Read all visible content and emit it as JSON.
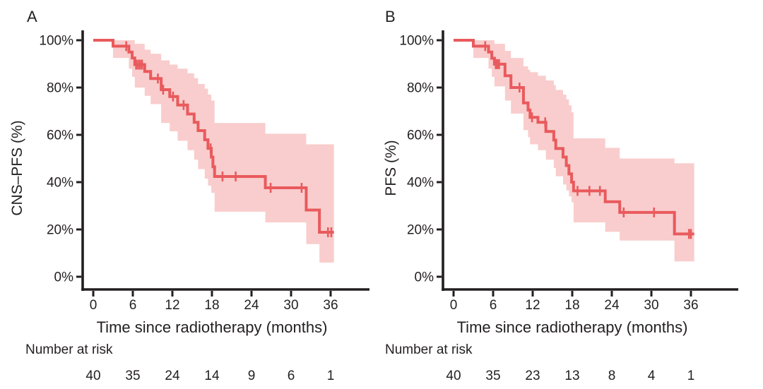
{
  "colors": {
    "curve": "#e95a5d",
    "ci_band": "#f9cdcd",
    "axis": "#231f20",
    "text": "#231f20",
    "background": "#ffffff"
  },
  "chart_data": [
    {
      "type": "line",
      "subtype": "kaplan_meier_step",
      "panel": "A",
      "title": "",
      "xlabel": "Time since radiotherapy (months)",
      "ylabel": "CNS–PFS (%)",
      "xlim": [
        0,
        36
      ],
      "ylim": [
        0,
        100
      ],
      "grid": false,
      "legend": "none",
      "x_ticks": [
        0,
        6,
        12,
        18,
        24,
        30,
        36
      ],
      "y_ticks": [
        100,
        80,
        60,
        40,
        20,
        0
      ],
      "y_tick_labels": [
        "100%",
        "80%",
        "60%",
        "40%",
        "20%",
        "0%"
      ],
      "series": [
        {
          "name": "CNS-PFS",
          "color": "#e95a5d",
          "ci_color": "#f9cdcd",
          "end_time": 36.5,
          "steps": [
            [
              0,
              100
            ],
            [
              3.0,
              97.5
            ],
            [
              5.4,
              95.0
            ],
            [
              5.9,
              92.5
            ],
            [
              6.3,
              89.7
            ],
            [
              7.8,
              86.8
            ],
            [
              8.7,
              83.8
            ],
            [
              10.3,
              79.1
            ],
            [
              11.6,
              76.2
            ],
            [
              12.8,
              72.6
            ],
            [
              14.3,
              68.8
            ],
            [
              15.3,
              65.3
            ],
            [
              15.9,
              61.8
            ],
            [
              16.9,
              57.9
            ],
            [
              17.4,
              54.3
            ],
            [
              17.9,
              50.6
            ],
            [
              18.15,
              46.5
            ],
            [
              18.4,
              42.4
            ],
            [
              26.1,
              37.6
            ],
            [
              32.3,
              28.2
            ],
            [
              34.3,
              18.8
            ]
          ],
          "censor_marks": [
            [
              5.0,
              97.5
            ],
            [
              6.5,
              89.7
            ],
            [
              6.8,
              89.7
            ],
            [
              7.1,
              89.7
            ],
            [
              7.4,
              89.7
            ],
            [
              9.8,
              83.8
            ],
            [
              10.6,
              79.1
            ],
            [
              12.1,
              76.2
            ],
            [
              13.7,
              72.6
            ],
            [
              17.8,
              54.3
            ],
            [
              19.6,
              42.4
            ],
            [
              21.6,
              42.4
            ],
            [
              26.9,
              37.6
            ],
            [
              31.6,
              37.6
            ],
            [
              35.6,
              18.8
            ],
            [
              36.1,
              18.8
            ]
          ],
          "ci_band": [
            [
              0,
              100,
              100
            ],
            [
              3.0,
              92.5,
              100
            ],
            [
              5.4,
              88,
              100
            ],
            [
              5.9,
              84.5,
              100
            ],
            [
              6.3,
              80,
              98.5
            ],
            [
              7.8,
              76.5,
              96
            ],
            [
              8.7,
              73,
              94.3
            ],
            [
              10.3,
              65,
              91.5
            ],
            [
              11.6,
              61.5,
              89.7
            ],
            [
              12.8,
              57.5,
              88
            ],
            [
              14.3,
              53.5,
              86
            ],
            [
              15.3,
              49.5,
              84
            ],
            [
              15.9,
              45.5,
              81.5
            ],
            [
              16.9,
              41.5,
              79.5
            ],
            [
              17.4,
              38.5,
              77
            ],
            [
              17.9,
              35.5,
              74.5
            ],
            [
              18.4,
              27.5,
              65
            ],
            [
              26.1,
              23,
              60.5
            ],
            [
              32.3,
              13.8,
              56
            ],
            [
              34.3,
              6,
              56
            ]
          ]
        }
      ],
      "number_at_risk": {
        "label": "Number at risk",
        "times": [
          0,
          6,
          12,
          18,
          24,
          30,
          36
        ],
        "counts": [
          40,
          35,
          24,
          14,
          9,
          6,
          1
        ]
      }
    },
    {
      "type": "line",
      "subtype": "kaplan_meier_step",
      "panel": "B",
      "title": "",
      "xlabel": "Time since radiotherapy (months)",
      "ylabel": "PFS (%)",
      "xlim": [
        0,
        36
      ],
      "ylim": [
        0,
        100
      ],
      "grid": false,
      "legend": "none",
      "x_ticks": [
        0,
        6,
        12,
        18,
        24,
        30,
        36
      ],
      "y_ticks": [
        100,
        80,
        60,
        40,
        20,
        0
      ],
      "y_tick_labels": [
        "100%",
        "80%",
        "60%",
        "40%",
        "20%",
        "0%"
      ],
      "series": [
        {
          "name": "PFS",
          "color": "#e95a5d",
          "ci_color": "#f9cdcd",
          "end_time": 36.5,
          "steps": [
            [
              0,
              100
            ],
            [
              3.0,
              97.5
            ],
            [
              5.3,
              95.0
            ],
            [
              5.8,
              92.4
            ],
            [
              6.2,
              89.9
            ],
            [
              7.8,
              85.0
            ],
            [
              8.7,
              80.0
            ],
            [
              10.6,
              73.5
            ],
            [
              11.3,
              70.5
            ],
            [
              11.6,
              67.4
            ],
            [
              12.8,
              65.3
            ],
            [
              14.0,
              61.4
            ],
            [
              15.2,
              57.8
            ],
            [
              15.5,
              54.2
            ],
            [
              16.6,
              50.6
            ],
            [
              17.1,
              47.0
            ],
            [
              17.5,
              43.5
            ],
            [
              17.9,
              40.0
            ],
            [
              18.2,
              36.3
            ],
            [
              23.0,
              31.7
            ],
            [
              25.2,
              27.2
            ],
            [
              33.5,
              18.1
            ]
          ],
          "censor_marks": [
            [
              4.8,
              97.5
            ],
            [
              6.4,
              89.9
            ],
            [
              6.65,
              89.9
            ],
            [
              6.9,
              89.9
            ],
            [
              10.0,
              80.0
            ],
            [
              11.9,
              67.4
            ],
            [
              13.9,
              65.3
            ],
            [
              18.8,
              36.3
            ],
            [
              20.6,
              36.3
            ],
            [
              22.2,
              36.3
            ],
            [
              25.8,
              27.2
            ],
            [
              30.4,
              27.2
            ],
            [
              35.7,
              18.1
            ],
            [
              36.0,
              18.1
            ]
          ],
          "ci_band": [
            [
              0,
              100,
              100
            ],
            [
              3.0,
              92.5,
              100
            ],
            [
              5.3,
              88,
              100
            ],
            [
              5.8,
              84.5,
              100
            ],
            [
              6.2,
              80.5,
              98.5
            ],
            [
              7.8,
              74.5,
              95.5
            ],
            [
              8.7,
              69,
              92.5
            ],
            [
              10.6,
              62,
              89
            ],
            [
              11.3,
              59,
              87.5
            ],
            [
              11.6,
              56,
              86.5
            ],
            [
              12.8,
              53.5,
              85
            ],
            [
              14.0,
              49.5,
              83
            ],
            [
              15.2,
              46,
              81
            ],
            [
              15.5,
              42.5,
              79
            ],
            [
              16.6,
              39,
              77
            ],
            [
              17.1,
              36.5,
              75
            ],
            [
              17.5,
              34,
              72.5
            ],
            [
              17.9,
              31.5,
              69.5
            ],
            [
              18.2,
              23,
              58.5
            ],
            [
              23.0,
              19,
              54.5
            ],
            [
              25.2,
              15.3,
              50
            ],
            [
              33.5,
              6.5,
              48
            ]
          ]
        }
      ],
      "number_at_risk": {
        "label": "Number at risk",
        "times": [
          0,
          6,
          12,
          18,
          24,
          30,
          36
        ],
        "counts": [
          40,
          35,
          23,
          13,
          8,
          4,
          1
        ]
      }
    }
  ]
}
